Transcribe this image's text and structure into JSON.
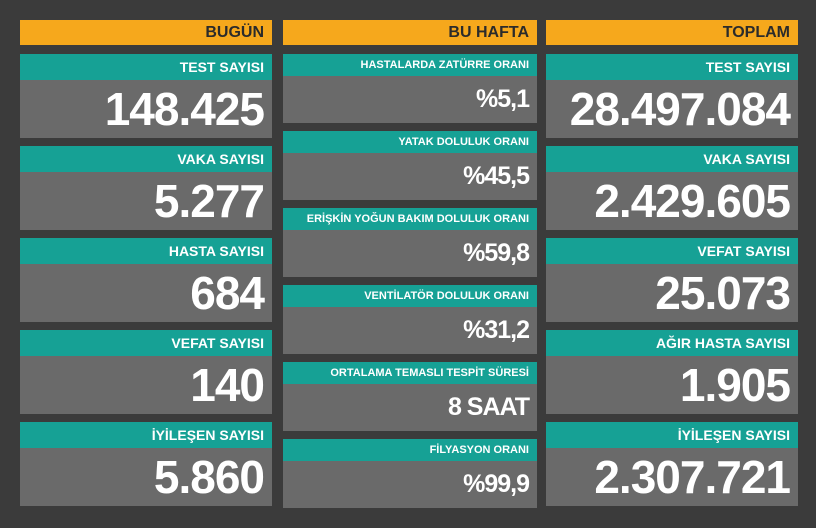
{
  "columns": [
    {
      "title": "BUGÜN",
      "items": [
        {
          "label": "TEST SAYISI",
          "value": "148.425"
        },
        {
          "label": "VAKA SAYISI",
          "value": "5.277"
        },
        {
          "label": "HASTA SAYISI",
          "value": "684"
        },
        {
          "label": "VEFAT SAYISI",
          "value": "140"
        },
        {
          "label": "İYİLEŞEN SAYISI",
          "value": "5.860"
        }
      ]
    },
    {
      "title": "BU HAFTA",
      "items": [
        {
          "label": "HASTALARDA ZATÜRRE ORANI",
          "value": "%5,1"
        },
        {
          "label": "YATAK DOLULUK ORANI",
          "value": "%45,5"
        },
        {
          "label": "ERİŞKİN YOĞUN BAKIM DOLULUK ORANI",
          "value": "%59,8"
        },
        {
          "label": "VENTİLATÖR DOLULUK ORANI",
          "value": "%31,2"
        },
        {
          "label": "ORTALAMA TEMASLI TESPİT SÜRESİ",
          "value": "8 SAAT"
        },
        {
          "label": "FİLYASYON ORANI",
          "value": "%99,9"
        }
      ]
    },
    {
      "title": "TOPLAM",
      "items": [
        {
          "label": "TEST SAYISI",
          "value": "28.497.084"
        },
        {
          "label": "VAKA SAYISI",
          "value": "2.429.605"
        },
        {
          "label": "VEFAT SAYISI",
          "value": "25.073"
        },
        {
          "label": "AĞIR HASTA SAYISI",
          "value": "1.905"
        },
        {
          "label": "İYİLEŞEN SAYISI",
          "value": "2.307.721"
        }
      ]
    }
  ]
}
